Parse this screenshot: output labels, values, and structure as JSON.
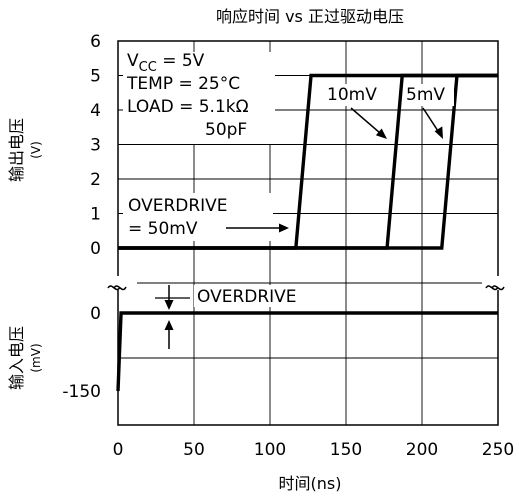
{
  "chart_data": [
    {
      "panel": "output",
      "type": "line",
      "title": "响应时间 vs 正过驱动电压",
      "ylabel": "输出电压",
      "yunit": "(V)",
      "ylim": [
        0,
        6
      ],
      "yticks": [
        "6",
        "5",
        "4",
        "3",
        "2",
        "1",
        "0"
      ],
      "xlim": [
        0,
        250
      ],
      "grid": true,
      "conditions": {
        "vcc": "V",
        "vcc_sub": "CC",
        "vcc_value": " = 5V",
        "temp": "TEMP = 25°C",
        "load1": "LOAD = 5.1kΩ",
        "load2": "50pF"
      },
      "series": [
        {
          "name": "OVERDRIVE = 50mV",
          "x": [
            0,
            117,
            127,
            250
          ],
          "y": [
            0,
            0,
            5,
            5
          ]
        },
        {
          "name": "10mV",
          "x": [
            0,
            177,
            187,
            250
          ],
          "y": [
            0,
            0,
            5,
            5
          ]
        },
        {
          "name": "5mV",
          "x": [
            0,
            213,
            223,
            250
          ],
          "y": [
            0,
            0,
            5,
            5
          ]
        }
      ],
      "annotations": {
        "overdrive_50_line1": "OVERDRIVE",
        "overdrive_50_line2": "= 50mV",
        "label_10mv": "10mV",
        "label_5mv": "5mV"
      }
    },
    {
      "panel": "input",
      "type": "line",
      "ylabel": "输入电压",
      "yunit": "(mV)",
      "ylim": [
        -150,
        0
      ],
      "yticks": [
        "0",
        "-150"
      ],
      "xlim": [
        0,
        250
      ],
      "xticks": [
        "0",
        "50",
        "100",
        "150",
        "200",
        "250"
      ],
      "xlabel": "时间(ns)",
      "grid": true,
      "series": [
        {
          "name": "input",
          "x": [
            0,
            0,
            2,
            250
          ],
          "y": [
            -150,
            -150,
            0,
            0
          ]
        }
      ],
      "annotations": {
        "overdrive": "OVERDRIVE"
      }
    }
  ]
}
